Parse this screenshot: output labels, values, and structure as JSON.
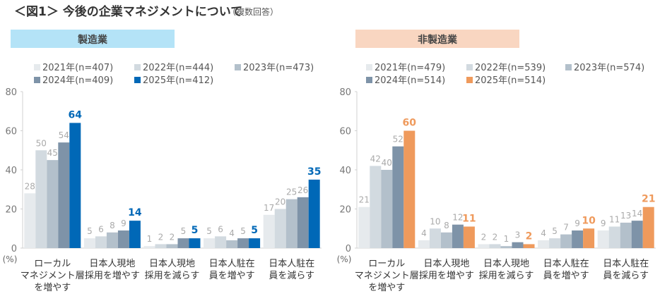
{
  "title": "＜図1＞ 今後の企業マネジメントについて",
  "subtitle": "（複数回答）",
  "chart_data": [
    {
      "type": "bar",
      "panel_title": "製造業",
      "banner_color": "#b4e3f7",
      "unit_label": "(%)",
      "ylim": [
        0,
        80
      ],
      "yticks": [
        0,
        20,
        40,
        60,
        80
      ],
      "grid": false,
      "legend_position": "top",
      "categories": [
        [
          "ローカル",
          "マネジメント層",
          "を増やす"
        ],
        [
          "日本人現地",
          "採用を増やす"
        ],
        [
          "日本人現地",
          "採用を減らす"
        ],
        [
          "日本人駐在",
          "員を増やす"
        ],
        [
          "日本人駐在",
          "員を減らす"
        ]
      ],
      "series": [
        {
          "name": "2021年(n=407)",
          "color": "#e6eaed",
          "values": [
            28,
            5,
            1,
            5,
            17
          ]
        },
        {
          "name": "2022年(n=444)",
          "color": "#d2dae0",
          "values": [
            50,
            6,
            2,
            6,
            20
          ]
        },
        {
          "name": "2023年(n=473)",
          "color": "#b3c0cb",
          "values": [
            45,
            8,
            2,
            4,
            25
          ]
        },
        {
          "name": "2024年(n=409)",
          "color": "#7e93a8",
          "values": [
            54,
            9,
            5,
            5,
            26
          ]
        },
        {
          "name": "2025年(n=412)",
          "color": "#0068b7",
          "values": [
            64,
            14,
            5,
            5,
            35
          ]
        }
      ]
    },
    {
      "type": "bar",
      "panel_title": "非製造業",
      "banner_color": "#f9d6c1",
      "unit_label": "(%)",
      "ylim": [
        0,
        80
      ],
      "yticks": [
        0,
        20,
        40,
        60,
        80
      ],
      "grid": false,
      "legend_position": "top",
      "categories": [
        [
          "ローカル",
          "マネジメント層",
          "を増やす"
        ],
        [
          "日本人現地",
          "採用を増やす"
        ],
        [
          "日本人現地",
          "採用を減らす"
        ],
        [
          "日本人駐在",
          "員を増やす"
        ],
        [
          "日本人駐在",
          "員を減らす"
        ]
      ],
      "series": [
        {
          "name": "2021年(n=479)",
          "color": "#e6eaed",
          "values": [
            21,
            4,
            2,
            4,
            9
          ]
        },
        {
          "name": "2022年(n=539)",
          "color": "#d2dae0",
          "values": [
            42,
            10,
            2,
            5,
            11
          ]
        },
        {
          "name": "2023年(n=574)",
          "color": "#b3c0cb",
          "values": [
            40,
            8,
            1,
            7,
            13
          ]
        },
        {
          "name": "2024年(n=514)",
          "color": "#7e93a8",
          "values": [
            52,
            12,
            3,
            9,
            14
          ]
        },
        {
          "name": "2025年(n=514)",
          "color": "#ef9a5c",
          "values": [
            60,
            11,
            2,
            10,
            21
          ]
        }
      ]
    }
  ]
}
